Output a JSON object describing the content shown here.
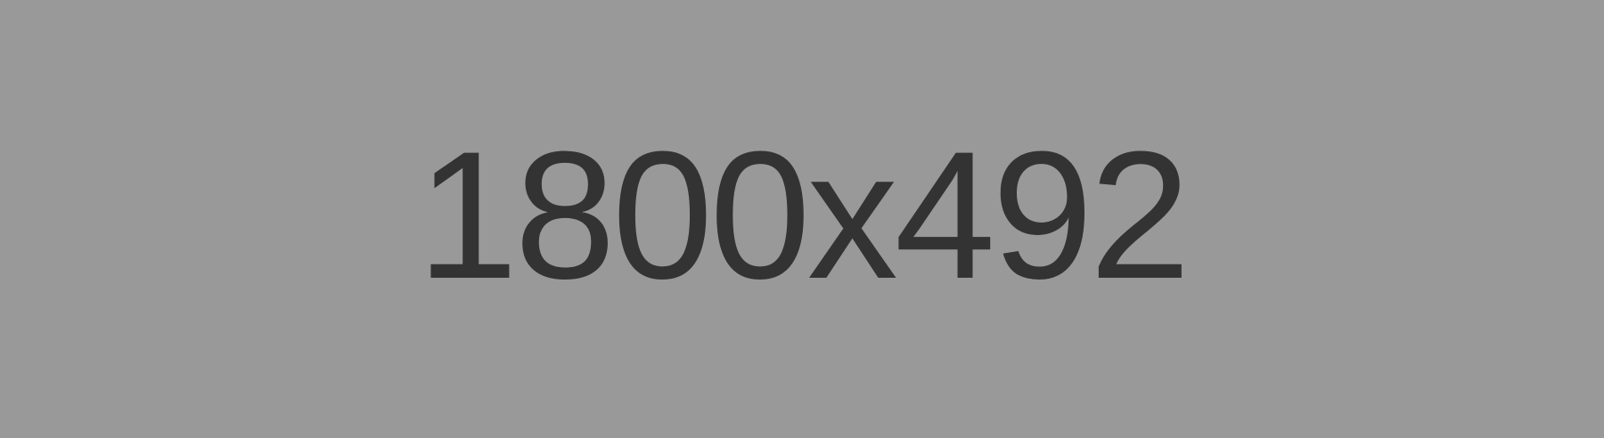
{
  "placeholder": {
    "label": "1800x492",
    "background_color": "#999999",
    "text_color": "#333333"
  }
}
